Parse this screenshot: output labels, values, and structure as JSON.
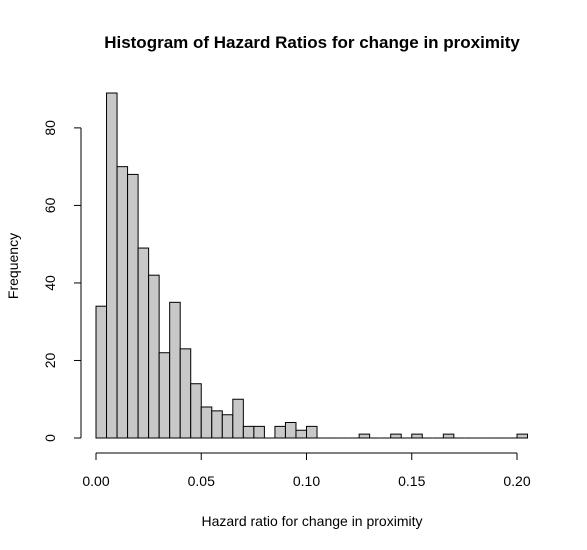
{
  "chart_data": {
    "type": "bar",
    "title": "Histogram of Hazard Ratios for change in proximity",
    "xlabel": "Hazard ratio for change in proximity",
    "ylabel": "Frequency",
    "bin_width": 0.005,
    "bin_start": 0.0,
    "values": [
      34,
      89,
      70,
      68,
      49,
      42,
      22,
      35,
      23,
      14,
      8,
      7,
      6,
      10,
      3,
      3,
      0,
      3,
      4,
      2,
      3,
      0,
      0,
      0,
      0,
      1,
      0,
      0,
      1,
      0,
      1,
      0,
      0,
      1,
      0,
      0,
      0,
      0,
      0,
      0,
      1
    ],
    "xlim": [
      0,
      0.205
    ],
    "ylim": [
      0,
      89
    ],
    "xticks": [
      0.0,
      0.05,
      0.1,
      0.15,
      0.2
    ],
    "xtick_labels": [
      "0.00",
      "0.05",
      "0.10",
      "0.15",
      "0.20"
    ],
    "yticks": [
      0,
      20,
      40,
      60,
      80
    ],
    "ytick_labels": [
      "0",
      "20",
      "40",
      "60",
      "80"
    ],
    "bar_fill": "#c8c8c8",
    "bar_stroke": "#000000",
    "grid": false,
    "legend": "none"
  }
}
